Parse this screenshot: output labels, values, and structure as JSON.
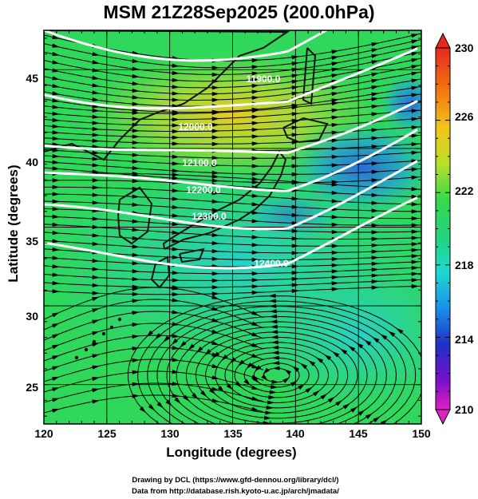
{
  "title": "MSM 21Z28Sep2025 (200.0hPa)",
  "axes": {
    "xlabel": "Longitude (degrees)",
    "ylabel": "Latitude  (degrees)",
    "xlim": [
      120,
      150
    ],
    "ylim": [
      22.5,
      47.5
    ],
    "xticks": [
      "120",
      "125",
      "130",
      "135",
      "140",
      "145",
      "150"
    ],
    "yticks": [
      "25",
      "30",
      "35",
      "40",
      "45"
    ]
  },
  "colorbar": {
    "min": 210,
    "max": 230,
    "labels": [
      "230",
      "226",
      "222",
      "218",
      "214",
      "210"
    ]
  },
  "contours": [
    {
      "label": "11900.0"
    },
    {
      "label": "12000.0"
    },
    {
      "label": "12100.0"
    },
    {
      "label": "12200.0"
    },
    {
      "label": "12300.0"
    },
    {
      "label": "12400.0"
    }
  ],
  "credits": {
    "line1": "Drawing by DCL (https://www.gfd-dennou.org/library/dcl/)",
    "line2": "Data from http://database.rish.kyoto-u.ac.jp/arch/jmadata/"
  },
  "colors": {
    "green_field": "#2fd85a",
    "max_yellow": "#e8d020",
    "min_blue": "#2a6de0",
    "contour": "#ffffff",
    "land": "#111111"
  }
}
